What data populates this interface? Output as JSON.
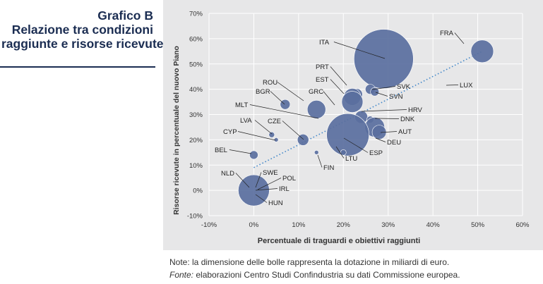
{
  "figure": {
    "label": "Grafico B",
    "title_lines": [
      "Relazione tra condizioni",
      "raggiunte e risorse ricevute"
    ],
    "note": "Note: la dimensione delle bolle rappresenta la dotazione in miliardi di euro.",
    "source_label": "Fonte:",
    "source_text": " elaborazioni Centro Studi Confindustria su dati Commissione europea."
  },
  "colors": {
    "bubble": "#5a6f9e",
    "trend": "#3f86c9",
    "title": "#1b2d52",
    "panel": "#e7e7e8",
    "grid": "#ffffff"
  },
  "chart_data": {
    "type": "scatter",
    "xlabel": "Percentuale di traguardi e obiettivi raggiunti",
    "ylabel": "Risorse ricevute in percentuale del nuovo Piano",
    "xlim": [
      -10,
      60
    ],
    "ylim": [
      -10,
      70
    ],
    "x_ticks": [
      "-10%",
      "0%",
      "10%",
      "20%",
      "30%",
      "40%",
      "50%",
      "60%"
    ],
    "y_ticks": [
      "-10%",
      "0%",
      "10%",
      "20%",
      "30%",
      "40%",
      "50%",
      "60%",
      "70%"
    ],
    "grid": true,
    "trendline": "dotted linear",
    "points": [
      {
        "label": "FRA",
        "x": 51,
        "y": 55
      },
      {
        "label": "ITA",
        "x": 29,
        "y": 52
      },
      {
        "label": "PRT",
        "x": 23,
        "y": 38
      },
      {
        "label": "EST",
        "x": 22,
        "y": 37
      },
      {
        "label": "SVK",
        "x": 26,
        "y": 40
      },
      {
        "label": "SVN",
        "x": 27,
        "y": 39
      },
      {
        "label": "LUX",
        "x": 45,
        "y": 42
      },
      {
        "label": "ROU",
        "x": 14,
        "y": 32
      },
      {
        "label": "BGR",
        "x": 7,
        "y": 34
      },
      {
        "label": "GRC",
        "x": 22,
        "y": 35
      },
      {
        "label": "MLT",
        "x": 14,
        "y": 31
      },
      {
        "label": "HRV",
        "x": 24,
        "y": 29
      },
      {
        "label": "DNK",
        "x": 26,
        "y": 28
      },
      {
        "label": "AUT",
        "x": 27,
        "y": 25
      },
      {
        "label": "DEU",
        "x": 28,
        "y": 23
      },
      {
        "label": "ESP",
        "x": 21,
        "y": 22
      },
      {
        "label": "LTU",
        "x": 20,
        "y": 15
      },
      {
        "label": "LVA",
        "x": 4,
        "y": 22
      },
      {
        "label": "CZE",
        "x": 11,
        "y": 20
      },
      {
        "label": "CYP",
        "x": 5,
        "y": 20
      },
      {
        "label": "FIN",
        "x": 14,
        "y": 15
      },
      {
        "label": "BEL",
        "x": 0,
        "y": 14
      },
      {
        "label": "NLD",
        "x": 0,
        "y": 0
      },
      {
        "label": "SWE",
        "x": 0,
        "y": 0
      },
      {
        "label": "POL",
        "x": 0,
        "y": 0
      },
      {
        "label": "IRL",
        "x": 0,
        "y": 0
      },
      {
        "label": "HUN",
        "x": 0,
        "y": 0
      }
    ]
  }
}
